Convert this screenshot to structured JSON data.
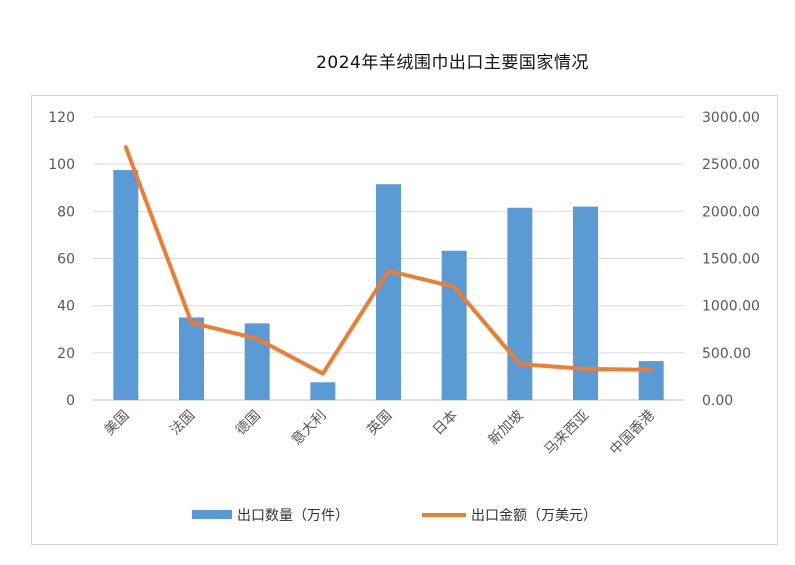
{
  "chart_data": {
    "type": "bar",
    "title": "2024年羊绒围巾出口主要国家情况",
    "categories": [
      "美国",
      "法国",
      "德国",
      "意大利",
      "英国",
      "日本",
      "新加坡",
      "马来西亚",
      "中国香港"
    ],
    "series": [
      {
        "name": "出口数量（万件）",
        "type": "bar",
        "axis": "left",
        "color": "#5b9bd5",
        "values": [
          97.5,
          35,
          32.5,
          7.5,
          91.5,
          63.3,
          81.5,
          82,
          16.5
        ]
      },
      {
        "name": "出口金额（万美元）",
        "type": "line",
        "axis": "right",
        "color": "#ed7d31",
        "values": [
          2680,
          820,
          650,
          280,
          1370,
          1200,
          380,
          330,
          320
        ]
      }
    ],
    "y_left": {
      "ylim": [
        0,
        120
      ],
      "ticks": [
        "0",
        "20",
        "40",
        "60",
        "80",
        "100",
        "120"
      ],
      "tick_values": [
        0,
        20,
        40,
        60,
        80,
        100,
        120
      ]
    },
    "y_right": {
      "ylim": [
        0,
        3000
      ],
      "ticks": [
        "0.00",
        "500.00",
        "1000.00",
        "1500.00",
        "2000.00",
        "2500.00",
        "3000.00"
      ],
      "tick_values": [
        0,
        500,
        1000,
        1500,
        2000,
        2500,
        3000
      ]
    },
    "grid": true,
    "legend": "bottom"
  }
}
